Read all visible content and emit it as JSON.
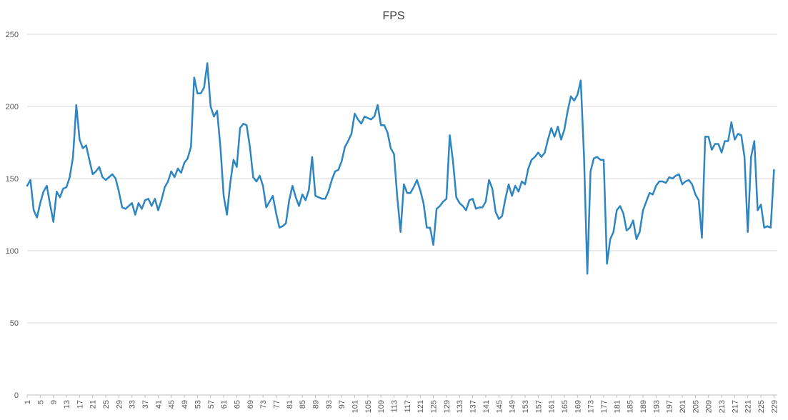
{
  "chart_data": {
    "type": "line",
    "title": "FPS",
    "xlabel": "",
    "ylabel": "",
    "ylim": [
      0,
      250
    ],
    "yticks": [
      0,
      50,
      100,
      150,
      200,
      250
    ],
    "x_start": 1,
    "x_end": 230,
    "xtick_step": 4,
    "grid": "horizontal",
    "legend": "none",
    "series": [
      {
        "color": "#2e86c1",
        "values": [
          145,
          149,
          128,
          123,
          133,
          141,
          145,
          132,
          120,
          141,
          137,
          143,
          144,
          151,
          165,
          201,
          177,
          171,
          173,
          163,
          153,
          155,
          158,
          151,
          149,
          151,
          153,
          150,
          141,
          130,
          129,
          131,
          133,
          125,
          133,
          129,
          135,
          136,
          131,
          136,
          128,
          135,
          144,
          148,
          155,
          151,
          157,
          154,
          161,
          164,
          172,
          220,
          209,
          209,
          213,
          230,
          200,
          193,
          197,
          172,
          138,
          125,
          147,
          163,
          158,
          185,
          188,
          187,
          172,
          151,
          148,
          152,
          145,
          130,
          134,
          138,
          126,
          116,
          117,
          119,
          135,
          145,
          137,
          131,
          139,
          135,
          142,
          165,
          138,
          137,
          136,
          136,
          141,
          149,
          155,
          156,
          162,
          172,
          176,
          181,
          195,
          191,
          188,
          193,
          192,
          191,
          193,
          201,
          187,
          187,
          182,
          171,
          167,
          137,
          113,
          146,
          140,
          140,
          144,
          149,
          142,
          133,
          116,
          116,
          104,
          129,
          131,
          134,
          136,
          180,
          162,
          137,
          133,
          131,
          128,
          135,
          136,
          129,
          130,
          130,
          134,
          149,
          143,
          127,
          122,
          124,
          136,
          146,
          138,
          145,
          141,
          148,
          146,
          157,
          163,
          165,
          168,
          165,
          168,
          177,
          185,
          179,
          186,
          177,
          184,
          197,
          207,
          204,
          208,
          218,
          165,
          84,
          155,
          164,
          165,
          163,
          163,
          91,
          108,
          113,
          128,
          131,
          126,
          114,
          116,
          121,
          108,
          113,
          128,
          134,
          140,
          139,
          145,
          148,
          148,
          147,
          151,
          150,
          152,
          153,
          146,
          148,
          149,
          146,
          139,
          135,
          109,
          179,
          179,
          170,
          174,
          174,
          168,
          176,
          176,
          189,
          177,
          181,
          180,
          165,
          113,
          165,
          176,
          128,
          132,
          116,
          117,
          116,
          156
        ]
      }
    ]
  }
}
